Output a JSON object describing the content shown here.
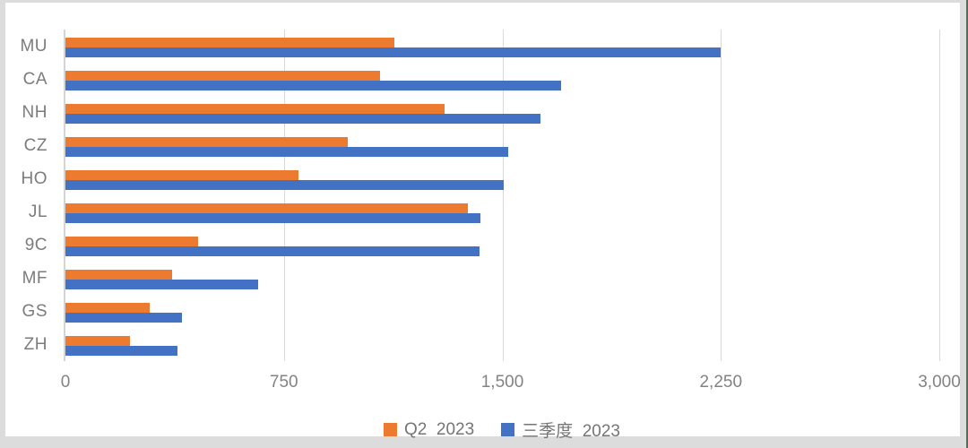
{
  "chart_data": {
    "type": "bar",
    "orientation": "horizontal",
    "title": "",
    "categories": [
      "MU",
      "CA",
      "NH",
      "CZ",
      "HO",
      "JL",
      "9C",
      "MF",
      "GS",
      "ZH"
    ],
    "series": [
      {
        "name": "Q2  2023",
        "color": "#ED7B2F",
        "values": [
          1130,
          1080,
          1300,
          970,
          800,
          1380,
          455,
          365,
          290,
          220
        ]
      },
      {
        "name": "三季度  2023",
        "color": "#4372C4",
        "values": [
          2250,
          1700,
          1630,
          1520,
          1505,
          1425,
          1420,
          660,
          400,
          385
        ]
      }
    ],
    "xlim": [
      0,
      3000
    ],
    "x_ticks": [
      0,
      750,
      1500,
      2250,
      3000
    ],
    "x_tick_labels": [
      "0",
      "750",
      "1,500",
      "2,250",
      "3,000"
    ],
    "xlabel": "",
    "ylabel": "",
    "grid": "vertical-gridlines-on",
    "legend_position": "bottom-center"
  },
  "style": {
    "gridline_color": "#d9d9d9",
    "axis_line_color": "#d4d4d4",
    "label_color": "#7c7c7c",
    "background_color": "#ffffff",
    "frame_color": "#dcdcdc"
  }
}
